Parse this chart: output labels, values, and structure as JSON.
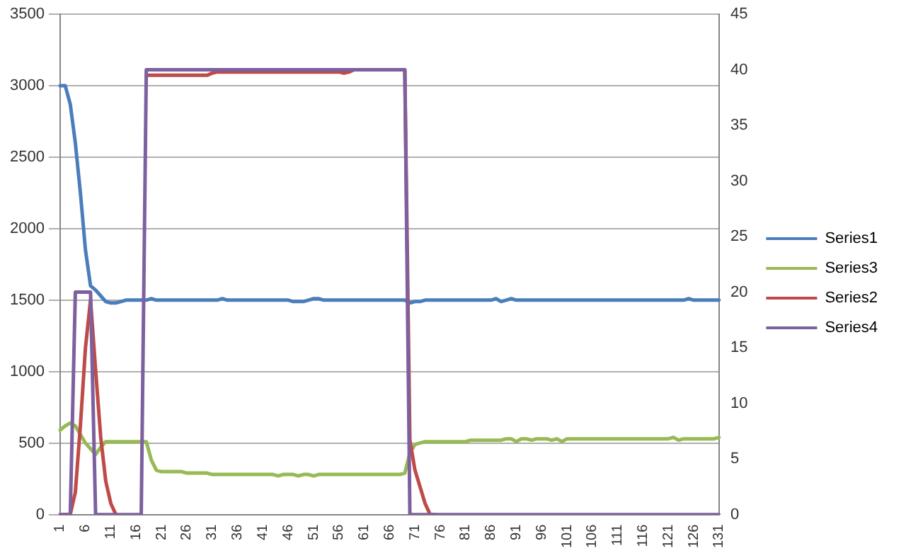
{
  "chart_data": {
    "type": "line",
    "categories": [
      "1",
      null,
      null,
      null,
      null,
      "6",
      null,
      null,
      null,
      null,
      "11",
      null,
      null,
      null,
      null,
      "16",
      null,
      null,
      null,
      null,
      "21",
      null,
      null,
      null,
      null,
      "26",
      null,
      null,
      null,
      null,
      "31",
      null,
      null,
      null,
      null,
      "36",
      null,
      null,
      null,
      null,
      "41",
      null,
      null,
      null,
      null,
      "46",
      null,
      null,
      null,
      null,
      "51",
      null,
      null,
      null,
      null,
      "56",
      null,
      null,
      null,
      null,
      "61",
      null,
      null,
      null,
      null,
      "66",
      null,
      null,
      null,
      null,
      "71",
      null,
      null,
      null,
      null,
      "76",
      null,
      null,
      null,
      null,
      "81",
      null,
      null,
      null,
      null,
      "86",
      null,
      null,
      null,
      null,
      "91",
      null,
      null,
      null,
      null,
      "96",
      null,
      null,
      null,
      null,
      "101",
      null,
      null,
      null,
      null,
      "106",
      null,
      null,
      null,
      null,
      "111",
      null,
      null,
      null,
      null,
      "116",
      null,
      null,
      null,
      null,
      "121",
      null,
      null,
      null,
      null,
      "126",
      null,
      null,
      null,
      null,
      "131"
    ],
    "series": [
      {
        "name": "Series1",
        "color": "#4a7ebb",
        "values": [
          3000,
          3000,
          2870,
          2600,
          2250,
          1850,
          1600,
          1570,
          1530,
          1490,
          1480,
          1480,
          1490,
          1500,
          1500,
          1500,
          1500,
          1500,
          1510,
          1500,
          1500,
          1500,
          1500,
          1500,
          1500,
          1500,
          1500,
          1500,
          1500,
          1500,
          1500,
          1500,
          1510,
          1500,
          1500,
          1500,
          1500,
          1500,
          1500,
          1500,
          1500,
          1500,
          1500,
          1500,
          1500,
          1500,
          1490,
          1490,
          1490,
          1500,
          1510,
          1510,
          1500,
          1500,
          1500,
          1500,
          1500,
          1500,
          1500,
          1500,
          1500,
          1500,
          1500,
          1500,
          1500,
          1500,
          1500,
          1500,
          1500,
          1480,
          1490,
          1490,
          1500,
          1500,
          1500,
          1500,
          1500,
          1500,
          1500,
          1500,
          1500,
          1500,
          1500,
          1500,
          1500,
          1500,
          1510,
          1490,
          1500,
          1510,
          1500,
          1500,
          1500,
          1500,
          1500,
          1500,
          1500,
          1500,
          1500,
          1500,
          1500,
          1500,
          1500,
          1500,
          1500,
          1500,
          1500,
          1500,
          1500,
          1500,
          1500,
          1500,
          1500,
          1500,
          1500,
          1500,
          1500,
          1500,
          1500,
          1500,
          1500,
          1500,
          1500,
          1500,
          1510,
          1500,
          1500,
          1500,
          1500,
          1500,
          1500
        ]
      },
      {
        "name": "Series3",
        "color": "#98b954",
        "values": [
          590,
          620,
          640,
          620,
          560,
          500,
          460,
          420,
          470,
          510,
          510,
          510,
          510,
          510,
          510,
          510,
          510,
          510,
          380,
          310,
          300,
          300,
          300,
          300,
          300,
          290,
          290,
          290,
          290,
          290,
          280,
          280,
          280,
          280,
          280,
          280,
          280,
          280,
          280,
          280,
          280,
          280,
          280,
          270,
          280,
          280,
          280,
          270,
          280,
          280,
          270,
          280,
          280,
          280,
          280,
          280,
          280,
          280,
          280,
          280,
          280,
          280,
          280,
          280,
          280,
          280,
          280,
          280,
          290,
          430,
          490,
          500,
          510,
          510,
          510,
          510,
          510,
          510,
          510,
          510,
          510,
          520,
          520,
          520,
          520,
          520,
          520,
          520,
          530,
          530,
          510,
          530,
          530,
          520,
          530,
          530,
          530,
          520,
          530,
          510,
          530,
          530,
          530,
          530,
          530,
          530,
          530,
          530,
          530,
          530,
          530,
          530,
          530,
          530,
          530,
          530,
          530,
          530,
          530,
          530,
          530,
          540,
          520,
          530,
          530,
          530,
          530,
          530,
          530,
          530,
          540
        ]
      },
      {
        "name": "Series2",
        "color": "#be4b48",
        "axis": "y2",
        "values": [
          0,
          0,
          0,
          2,
          8,
          15,
          19.3,
          13,
          7,
          3,
          1,
          0,
          null,
          null,
          null,
          null,
          null,
          39.5,
          39.5,
          39.5,
          39.5,
          39.5,
          39.5,
          39.5,
          39.5,
          39.5,
          39.5,
          39.5,
          39.5,
          39.5,
          39.7,
          39.8,
          39.8,
          39.8,
          39.8,
          39.8,
          39.8,
          39.8,
          39.8,
          39.8,
          39.8,
          39.8,
          39.8,
          39.8,
          39.8,
          39.8,
          39.8,
          39.8,
          39.8,
          39.8,
          39.8,
          39.8,
          39.8,
          39.8,
          39.8,
          39.8,
          39.7,
          39.8,
          40,
          40,
          null,
          null,
          null,
          null,
          null,
          null,
          null,
          null,
          40,
          6.7,
          4,
          2.5,
          1,
          0,
          0,
          null,
          null,
          null,
          null,
          null,
          null,
          null,
          null,
          null,
          null,
          null,
          null,
          null,
          null,
          null,
          null,
          null,
          null,
          null,
          null,
          null,
          null,
          null,
          null,
          null,
          null,
          null,
          null,
          null,
          null,
          null,
          null,
          null,
          null,
          null,
          null,
          null,
          null,
          null,
          null,
          null,
          null,
          null,
          null,
          null,
          null,
          null,
          null,
          null,
          null,
          null,
          null,
          null,
          null,
          null,
          null
        ]
      },
      {
        "name": "Series4",
        "color": "#7d60a0",
        "axis": "y2",
        "values": [
          0,
          0,
          0,
          20,
          20,
          20,
          20,
          0,
          0,
          0,
          0,
          0,
          0,
          0,
          0,
          0,
          0,
          40,
          40,
          40,
          40,
          40,
          40,
          40,
          40,
          40,
          40,
          40,
          40,
          40,
          40,
          40,
          40,
          40,
          40,
          40,
          40,
          40,
          40,
          40,
          40,
          40,
          40,
          40,
          40,
          40,
          40,
          40,
          40,
          40,
          40,
          40,
          40,
          40,
          40,
          40,
          40,
          40,
          40,
          40,
          40,
          40,
          40,
          40,
          40,
          40,
          40,
          40,
          40,
          0,
          0,
          0,
          0,
          0,
          0,
          0,
          0,
          0,
          0,
          0,
          0,
          0,
          0,
          0,
          0,
          0,
          0,
          0,
          0,
          0,
          0,
          0,
          0,
          0,
          0,
          0,
          0,
          0,
          0,
          0,
          0,
          0,
          0,
          0,
          0,
          0,
          0,
          0,
          0,
          0,
          0,
          0,
          0,
          0,
          0,
          0,
          0,
          0,
          0,
          0,
          0,
          0,
          0,
          0,
          0,
          0,
          0,
          0,
          0,
          0,
          0
        ]
      }
    ],
    "ylim": [
      0,
      3500
    ],
    "yticks": [
      0,
      500,
      1000,
      1500,
      2000,
      2500,
      3000,
      3500
    ],
    "y2lim": [
      0,
      45
    ],
    "y2ticks": [
      0,
      5,
      10,
      15,
      20,
      25,
      30,
      35,
      40,
      45
    ],
    "grid": "y",
    "legend": "right",
    "marker": "none",
    "line_style": "solid"
  }
}
